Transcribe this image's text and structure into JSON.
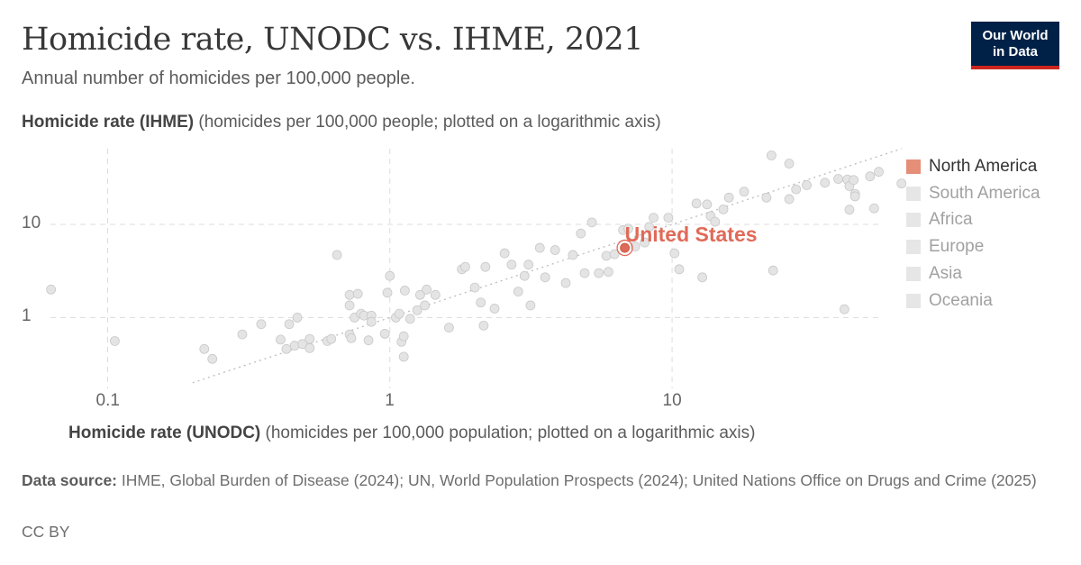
{
  "header": {
    "title": "Homicide rate, UNODC vs. IHME, 2021",
    "subtitle": "Annual number of homicides per 100,000 people.",
    "logo_line1": "Our World",
    "logo_line2": "in Data"
  },
  "chart_data": {
    "type": "scatter",
    "x_axis": {
      "label_bold": "Homicide rate (UNODC)",
      "label_rest": " (homicides per 100,000 population; plotted on a logarithmic axis)",
      "scale": "log",
      "range": [
        0.06,
        55
      ],
      "ticks": [
        {
          "value": 0.1,
          "label": "0.1"
        },
        {
          "value": 1,
          "label": "1"
        },
        {
          "value": 10,
          "label": "10"
        }
      ]
    },
    "y_axis": {
      "label_bold": "Homicide rate (IHME)",
      "label_rest": " (homicides per 100,000 people; plotted on a logarithmic axis)",
      "scale": "log",
      "range": [
        0.19,
        65
      ],
      "ticks": [
        {
          "value": 1,
          "label": "1"
        },
        {
          "value": 10,
          "label": "10"
        }
      ]
    },
    "grid": true,
    "reference_line": "y = x",
    "legend": {
      "position": "right",
      "items": [
        {
          "name": "North America",
          "color": "#e58e78",
          "active": true
        },
        {
          "name": "South America",
          "color": "#e6e6e6",
          "active": false
        },
        {
          "name": "Africa",
          "color": "#e6e6e6",
          "active": false
        },
        {
          "name": "Europe",
          "color": "#e6e6e6",
          "active": false
        },
        {
          "name": "Asia",
          "color": "#e6e6e6",
          "active": false
        },
        {
          "name": "Oceania",
          "color": "#e6e6e6",
          "active": false
        }
      ]
    },
    "highlight": {
      "label": "United States",
      "x": 6.8,
      "y": 5.6,
      "color": "#e06a58"
    },
    "points": [
      [
        0.063,
        2.0
      ],
      [
        0.106,
        0.56
      ],
      [
        0.22,
        0.46
      ],
      [
        0.235,
        0.36
      ],
      [
        0.3,
        0.66
      ],
      [
        0.35,
        0.85
      ],
      [
        0.41,
        0.58
      ],
      [
        0.43,
        0.46
      ],
      [
        0.44,
        0.85
      ],
      [
        0.46,
        0.5
      ],
      [
        0.47,
        1.0
      ],
      [
        0.49,
        0.52
      ],
      [
        0.52,
        0.59
      ],
      [
        0.52,
        0.47
      ],
      [
        0.6,
        0.56
      ],
      [
        0.62,
        0.59
      ],
      [
        0.65,
        4.7
      ],
      [
        0.72,
        0.66
      ],
      [
        0.73,
        0.6
      ],
      [
        0.72,
        1.35
      ],
      [
        0.72,
        1.75
      ],
      [
        0.75,
        1.0
      ],
      [
        0.77,
        1.8
      ],
      [
        0.79,
        1.1
      ],
      [
        0.81,
        1.05
      ],
      [
        0.84,
        0.57
      ],
      [
        0.86,
        1.05
      ],
      [
        0.86,
        0.9
      ],
      [
        0.96,
        0.67
      ],
      [
        0.98,
        1.85
      ],
      [
        1.0,
        2.8
      ],
      [
        1.05,
        1.0
      ],
      [
        1.08,
        1.1
      ],
      [
        1.1,
        0.55
      ],
      [
        1.12,
        0.63
      ],
      [
        1.12,
        0.38
      ],
      [
        1.13,
        1.95
      ],
      [
        1.18,
        0.97
      ],
      [
        1.25,
        1.2
      ],
      [
        1.28,
        1.75
      ],
      [
        1.33,
        1.35
      ],
      [
        1.35,
        2.0
      ],
      [
        1.45,
        1.75
      ],
      [
        1.62,
        0.78
      ],
      [
        1.8,
        3.3
      ],
      [
        1.85,
        3.5
      ],
      [
        2.0,
        2.1
      ],
      [
        2.1,
        1.45
      ],
      [
        2.15,
        0.82
      ],
      [
        2.18,
        3.5
      ],
      [
        2.35,
        1.25
      ],
      [
        2.55,
        4.9
      ],
      [
        2.7,
        3.7
      ],
      [
        2.85,
        1.9
      ],
      [
        3.1,
        3.7
      ],
      [
        3.0,
        2.8
      ],
      [
        3.15,
        1.35
      ],
      [
        3.4,
        5.6
      ],
      [
        3.55,
        2.7
      ],
      [
        3.85,
        5.3
      ],
      [
        4.2,
        2.35
      ],
      [
        4.45,
        4.7
      ],
      [
        4.75,
        8.0
      ],
      [
        4.9,
        3.0
      ],
      [
        5.2,
        10.5
      ],
      [
        5.5,
        3.0
      ],
      [
        5.85,
        4.6
      ],
      [
        5.95,
        3.1
      ],
      [
        6.25,
        4.8
      ],
      [
        6.7,
        8.7
      ],
      [
        7.0,
        9.0
      ],
      [
        7.4,
        5.8
      ],
      [
        8.0,
        6.4
      ],
      [
        8.3,
        9.4
      ],
      [
        8.6,
        11.8
      ],
      [
        9.7,
        11.8
      ],
      [
        10.2,
        4.9
      ],
      [
        10.6,
        3.3
      ],
      [
        12.2,
        16.8
      ],
      [
        12.8,
        2.7
      ],
      [
        13.3,
        16.4
      ],
      [
        13.7,
        12.3
      ],
      [
        14.2,
        10.7
      ],
      [
        15.2,
        14.5
      ],
      [
        15.9,
        19.4
      ],
      [
        18.0,
        22.5
      ],
      [
        21.6,
        19.4
      ],
      [
        22.5,
        55.0
      ],
      [
        22.8,
        3.2
      ],
      [
        26.0,
        18.7
      ],
      [
        26.0,
        45.0
      ],
      [
        27.5,
        23.8
      ],
      [
        30.0,
        26.4
      ],
      [
        34.8,
        28.0
      ],
      [
        38.8,
        30.8
      ],
      [
        40.8,
        1.23
      ],
      [
        41.8,
        30.3
      ],
      [
        42.5,
        14.4
      ],
      [
        42.5,
        25.8
      ],
      [
        44.5,
        21.3
      ],
      [
        44.5,
        20.0
      ],
      [
        50.3,
        32.8
      ],
      [
        52.0,
        14.9
      ],
      [
        54.0,
        36.7
      ],
      [
        65.0,
        27.5
      ],
      [
        44.0,
        30.0
      ]
    ]
  },
  "source": {
    "label": "Data source:",
    "text": " IHME, Global Burden of Disease (2024); UN, World Population Prospects (2024); United Nations Office on Drugs and Crime (2025)"
  },
  "license": "CC BY"
}
